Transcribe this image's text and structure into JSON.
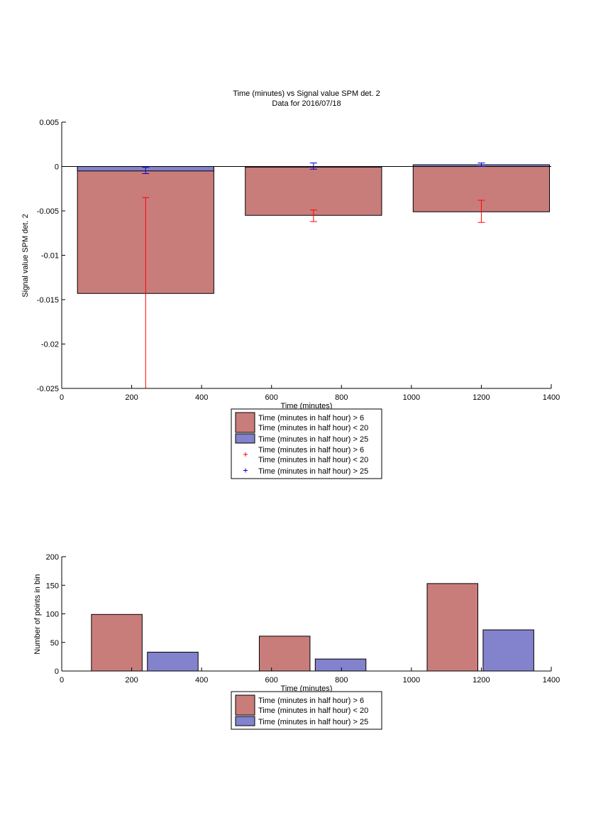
{
  "chart_data": [
    {
      "type": "bar",
      "title": "Time (minutes) vs Signal value SPM det. 2",
      "subtitle": "Data for 2016/07/18",
      "xlabel": "Time (minutes)",
      "ylabel": "Signal value SPM det. 2",
      "xlim": [
        0,
        1400
      ],
      "ylim": [
        -0.025,
        0.005
      ],
      "xticks": [
        0,
        200,
        400,
        600,
        800,
        1000,
        1200,
        1400
      ],
      "yticks": [
        0.005,
        0,
        -0.005,
        -0.01,
        -0.015,
        -0.02,
        -0.025
      ],
      "xtick_labels": [
        "0",
        "200",
        "400",
        "600",
        "800",
        "1000",
        "1200",
        "1400"
      ],
      "ytick_labels": [
        "0.005",
        "0",
        "-0.005",
        "-0.01",
        "-0.015",
        "-0.02",
        "-0.025"
      ],
      "bin_centers": [
        240,
        720,
        1200
      ],
      "bin_ranges": [
        [
          45,
          435
        ],
        [
          525,
          915
        ],
        [
          1005,
          1395
        ]
      ],
      "series": [
        {
          "legend_line1": "Time (minutes in half hour) > 6",
          "legend_line2": "Time (minutes in half hour) < 20",
          "color": "#c97d7b",
          "error_color": "#ff0000",
          "values": [
            -0.0143,
            -0.0055,
            -0.0051
          ],
          "error_low": [
            -0.025,
            -0.0062,
            -0.0063
          ],
          "error_high": [
            -0.0035,
            -0.0049,
            -0.0038
          ]
        },
        {
          "legend_line1": "Time (minutes in half hour) > 25",
          "color": "#8282cd",
          "error_color": "#0000cc",
          "values": [
            -0.0005,
            0.0,
            0.0002
          ],
          "error_low": [
            -0.0008,
            -0.0003,
            0.0
          ],
          "error_high": [
            -0.0001,
            0.0004,
            0.0004
          ]
        }
      ],
      "legend": {
        "placement": "below",
        "entries": [
          {
            "line1": "Time (minutes in half hour) > 6",
            "line2": "Time (minutes in half hour) < 20",
            "marker": "bar",
            "color": "#c97d7b"
          },
          {
            "line1": "Time (minutes in half hour) > 25",
            "line2": "",
            "marker": "bar",
            "color": "#8282cd"
          },
          {
            "line1": "Time (minutes in half hour) > 6",
            "line2": "Time (minutes in half hour) < 20",
            "marker": "+",
            "color": "#ff0000"
          },
          {
            "line1": "Time (minutes in half hour) > 25",
            "line2": "",
            "marker": "+",
            "color": "#0000cc"
          }
        ]
      }
    },
    {
      "type": "bar",
      "title": "",
      "xlabel": "Time (minutes)",
      "ylabel": "Number of points in bin",
      "xlim": [
        0,
        1400
      ],
      "ylim": [
        0,
        200
      ],
      "xticks": [
        0,
        200,
        400,
        600,
        800,
        1000,
        1200,
        1400
      ],
      "yticks": [
        200,
        150,
        100,
        50,
        0
      ],
      "xtick_labels": [
        "0",
        "200",
        "400",
        "600",
        "800",
        "1000",
        "1200",
        "1400"
      ],
      "ytick_labels": [
        "200",
        "150",
        "100",
        "50",
        "0"
      ],
      "categories": [
        240,
        720,
        1200
      ],
      "series": [
        {
          "legend_line1": "Time (minutes in half hour) > 6",
          "legend_line2": "Time (minutes in half hour) < 20",
          "color": "#c97d7b",
          "values": [
            99,
            61,
            153
          ],
          "ranges": [
            [
              85,
              230
            ],
            [
              565,
              710
            ],
            [
              1045,
              1190
            ]
          ]
        },
        {
          "legend_line1": "Time (minutes in half hour) > 25",
          "color": "#8282cd",
          "values": [
            33,
            21,
            72
          ],
          "ranges": [
            [
              245,
              390
            ],
            [
              725,
              870
            ],
            [
              1205,
              1350
            ]
          ]
        }
      ],
      "legend": {
        "placement": "below",
        "entries": [
          {
            "line1": "Time (minutes in half hour) > 6",
            "line2": "Time (minutes in half hour) < 20",
            "marker": "bar",
            "color": "#c97d7b"
          },
          {
            "line1": "Time (minutes in half hour) > 25",
            "line2": "",
            "marker": "bar",
            "color": "#8282cd"
          }
        ]
      }
    }
  ]
}
